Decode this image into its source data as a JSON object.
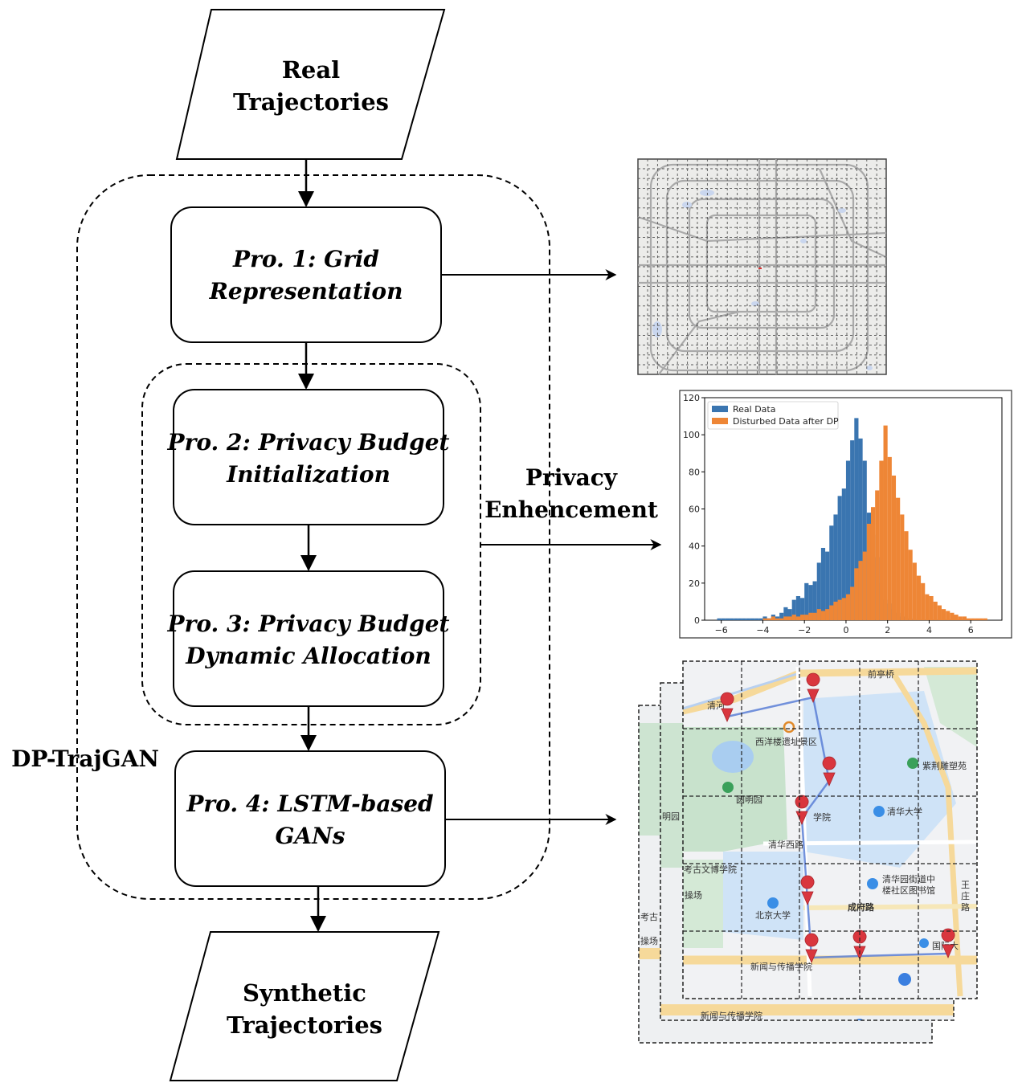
{
  "nodes": {
    "input": {
      "line1": "Real",
      "line2": "Trajectories"
    },
    "pro1": {
      "line1": "Pro. 1: Grid",
      "line2": "Representation"
    },
    "pro2": {
      "line1": "Pro. 2: Privacy Budget",
      "line2": "Initialization"
    },
    "pro3": {
      "line1": "Pro. 3: Privacy Budget",
      "line2": "Dynamic Allocation"
    },
    "pro4": {
      "line1": "Pro. 4: LSTM-based",
      "line2": "GANs"
    },
    "output": {
      "line1": "Synthetic",
      "line2": "Trajectories"
    }
  },
  "labels": {
    "framework": "DP-TrajGAN",
    "privacy_line1": "Privacy",
    "privacy_line2": "Enhencement"
  },
  "map_labels": {
    "l1": "前亭桥",
    "l2": "清河",
    "l3": "西洋楼遗址景区",
    "l4": "紫荆雕塑苑",
    "l5": "圆明园",
    "l6": "明园",
    "l7": "学院",
    "l8": "清华大学",
    "l9": "清华西路",
    "l10": "考古文博学院",
    "l11": "清华园街道中",
    "l12": "楼社区图书馆",
    "l13": "操场",
    "l14": "北京大学",
    "l15": "成府路",
    "l16": "王",
    "l17": "庄",
    "l18": "路",
    "l19": "考古",
    "l20": "新闻与传播学院",
    "l21": "国际大"
  },
  "chart_data": {
    "type": "bar",
    "legend": [
      "Real Data",
      "Disturbed Data after DP"
    ],
    "legend_position": "top-left",
    "xlim": [
      -6.8,
      7.5
    ],
    "ylim": [
      0,
      120
    ],
    "xticks": [
      -6,
      -4,
      -2,
      0,
      2,
      4,
      6
    ],
    "yticks": [
      0,
      20,
      40,
      60,
      80,
      100,
      120
    ],
    "colors": {
      "real": "#3a75b0",
      "dp": "#ee8636"
    },
    "bin_width": 0.2,
    "series": [
      {
        "name": "Real Data",
        "bins": [
          [
            -6.2,
            1
          ],
          [
            -6.0,
            1
          ],
          [
            -5.8,
            1
          ],
          [
            -5.6,
            1
          ],
          [
            -5.4,
            1
          ],
          [
            -5.2,
            1
          ],
          [
            -5.0,
            1
          ],
          [
            -4.8,
            1
          ],
          [
            -4.6,
            1
          ],
          [
            -4.4,
            1
          ],
          [
            -4.2,
            1
          ],
          [
            -4.0,
            2
          ],
          [
            -3.8,
            1
          ],
          [
            -3.6,
            3
          ],
          [
            -3.4,
            2
          ],
          [
            -3.2,
            4
          ],
          [
            -3.0,
            7
          ],
          [
            -2.8,
            6
          ],
          [
            -2.6,
            11
          ],
          [
            -2.4,
            13
          ],
          [
            -2.2,
            12
          ],
          [
            -2.0,
            20
          ],
          [
            -1.8,
            19
          ],
          [
            -1.6,
            21
          ],
          [
            -1.4,
            31
          ],
          [
            -1.2,
            39
          ],
          [
            -1.0,
            37
          ],
          [
            -0.8,
            51
          ],
          [
            -0.6,
            57
          ],
          [
            -0.4,
            67
          ],
          [
            -0.2,
            71
          ],
          [
            0.0,
            86
          ],
          [
            0.2,
            97
          ],
          [
            0.4,
            109
          ],
          [
            0.6,
            98
          ],
          [
            0.8,
            86
          ],
          [
            1.0,
            58
          ],
          [
            1.2,
            46
          ],
          [
            1.4,
            34
          ],
          [
            1.6,
            20
          ],
          [
            1.8,
            11
          ],
          [
            2.0,
            9
          ],
          [
            2.2,
            6
          ],
          [
            2.4,
            4
          ],
          [
            2.6,
            2
          ],
          [
            2.8,
            2
          ],
          [
            3.0,
            1
          ]
        ]
      },
      {
        "name": "Disturbed Data after DP",
        "bins": [
          [
            -4.0,
            1
          ],
          [
            -3.8,
            1
          ],
          [
            -3.6,
            2
          ],
          [
            -3.4,
            1
          ],
          [
            -3.2,
            1
          ],
          [
            -3.0,
            2
          ],
          [
            -2.8,
            2
          ],
          [
            -2.6,
            3
          ],
          [
            -2.4,
            2
          ],
          [
            -2.2,
            3
          ],
          [
            -2.0,
            3
          ],
          [
            -1.8,
            4
          ],
          [
            -1.6,
            4
          ],
          [
            -1.4,
            6
          ],
          [
            -1.2,
            5
          ],
          [
            -1.0,
            6
          ],
          [
            -0.8,
            8
          ],
          [
            -0.6,
            10
          ],
          [
            -0.4,
            11
          ],
          [
            -0.2,
            12
          ],
          [
            0.0,
            14
          ],
          [
            0.2,
            18
          ],
          [
            0.4,
            28
          ],
          [
            0.6,
            32
          ],
          [
            0.8,
            37
          ],
          [
            1.0,
            52
          ],
          [
            1.2,
            61
          ],
          [
            1.4,
            70
          ],
          [
            1.6,
            86
          ],
          [
            1.8,
            105
          ],
          [
            2.0,
            88
          ],
          [
            2.2,
            78
          ],
          [
            2.4,
            66
          ],
          [
            2.6,
            57
          ],
          [
            2.8,
            48
          ],
          [
            3.0,
            38
          ],
          [
            3.2,
            31
          ],
          [
            3.4,
            24
          ],
          [
            3.6,
            20
          ],
          [
            3.8,
            14
          ],
          [
            4.0,
            13
          ],
          [
            4.2,
            10
          ],
          [
            4.4,
            8
          ],
          [
            4.6,
            6
          ],
          [
            4.8,
            5
          ],
          [
            5.0,
            4
          ],
          [
            5.2,
            3
          ],
          [
            5.4,
            2
          ],
          [
            5.6,
            2
          ],
          [
            5.8,
            1
          ],
          [
            6.0,
            1
          ],
          [
            6.2,
            1
          ],
          [
            6.4,
            1
          ],
          [
            6.6,
            1
          ]
        ]
      }
    ]
  }
}
